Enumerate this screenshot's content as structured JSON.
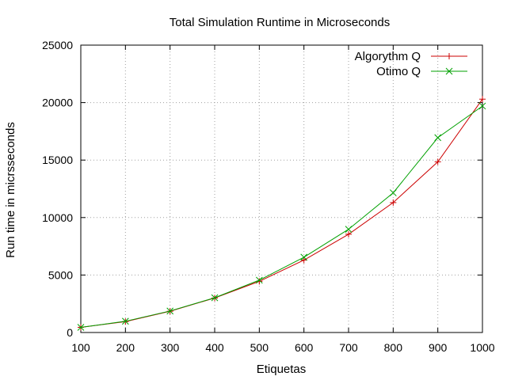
{
  "chart_data": {
    "type": "line",
    "title": "Total Simulation Runtime in Microseconds",
    "xlabel": "Etiquetas",
    "ylabel": "Run time in micrsseconds",
    "x": [
      100,
      200,
      300,
      400,
      500,
      600,
      700,
      800,
      900,
      1000
    ],
    "xlim": [
      100,
      1000
    ],
    "ylim": [
      0,
      25000
    ],
    "xticks": [
      "100",
      "200",
      "300",
      "400",
      "500",
      "600",
      "700",
      "800",
      "900",
      "1000"
    ],
    "yticks": [
      "0",
      "5000",
      "10000",
      "15000",
      "20000",
      "25000"
    ],
    "grid": true,
    "legend_position": "top-right",
    "series": [
      {
        "name": "Algorythm Q",
        "color": "#cc0000",
        "marker": "plus",
        "values": [
          450,
          950,
          1850,
          3000,
          4450,
          6300,
          8550,
          11300,
          14850,
          20300
        ]
      },
      {
        "name": "Otimo Q",
        "color": "#00a000",
        "marker": "cross",
        "values": [
          450,
          980,
          1870,
          3020,
          4550,
          6550,
          8980,
          12150,
          16950,
          19700
        ]
      }
    ]
  }
}
